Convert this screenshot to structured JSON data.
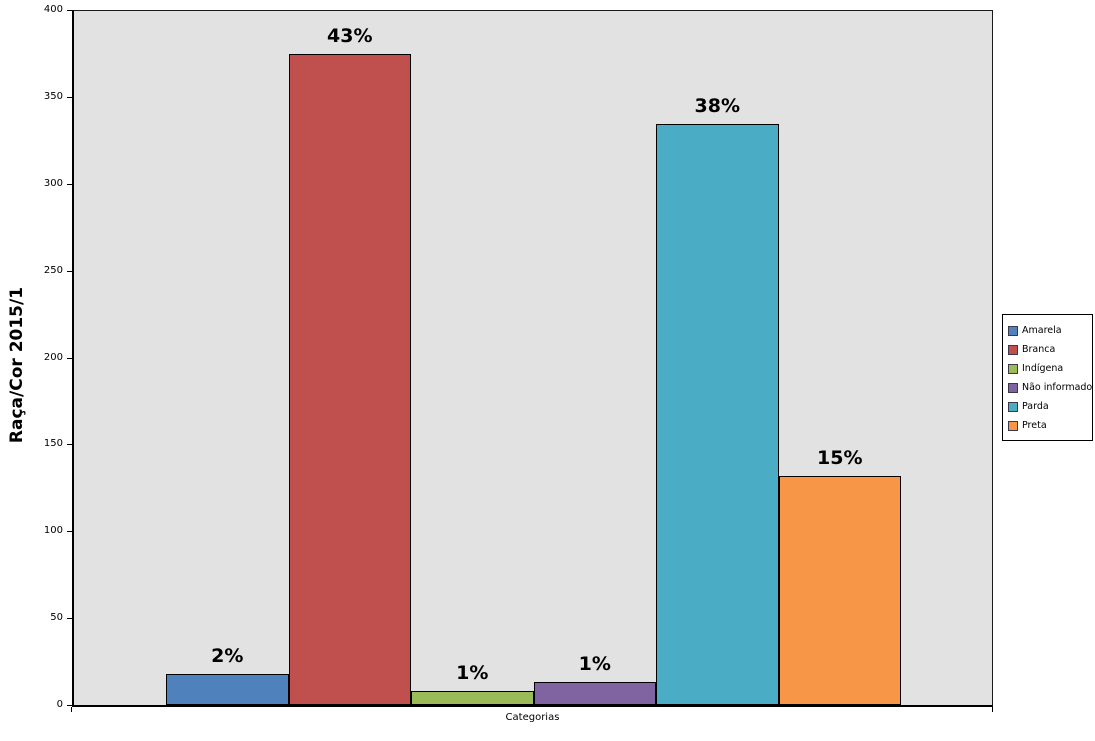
{
  "chart_data": {
    "type": "bar",
    "title": "",
    "ylabel": "Raça/Cor 2015/1",
    "xlabel": "Categorias",
    "ylim": [
      0,
      400
    ],
    "yticks": [
      0,
      50,
      100,
      150,
      200,
      250,
      300,
      350,
      400
    ],
    "grid": false,
    "legend_position": "right",
    "plot_background": "#e2e2e2",
    "categories": [
      "Amarela",
      "Branca",
      "Indígena",
      "Não informado",
      "Parda",
      "Preta"
    ],
    "series": [
      {
        "name": "Amarela",
        "value": 18,
        "data_label": "2%",
        "color": "#4F81BD"
      },
      {
        "name": "Branca",
        "value": 375,
        "data_label": "43%",
        "color": "#C0504D"
      },
      {
        "name": "Indígena",
        "value": 8,
        "data_label": "1%",
        "color": "#9BBB59"
      },
      {
        "name": "Não informado",
        "value": 13,
        "data_label": "1%",
        "color": "#8064A2"
      },
      {
        "name": "Parda",
        "value": 335,
        "data_label": "38%",
        "color": "#4BACC6"
      },
      {
        "name": "Preta",
        "value": 132,
        "data_label": "15%",
        "color": "#F79646"
      }
    ],
    "legend_entries": [
      "Amarela",
      "Branca",
      "Indígena",
      "Não informado",
      "Parda",
      "Preta"
    ]
  }
}
